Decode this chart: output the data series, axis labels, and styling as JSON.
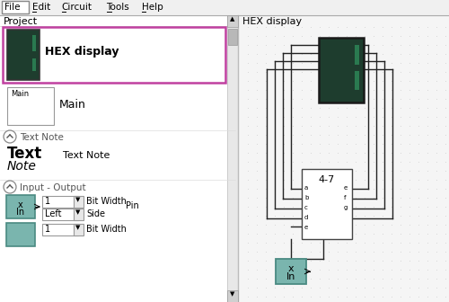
{
  "bg_color": "#f0f0f0",
  "menu_items": [
    "File",
    "Edit",
    "Circuit",
    "Tools",
    "Help"
  ],
  "panel_title": "Project",
  "right_title": "HEX display",
  "hex_display_label": "HEX display",
  "main_label": "Main",
  "text_note_label": "Text Note",
  "input_output_label": "Input - Output",
  "bit_width_label": "Bit Width",
  "side_label": "Side",
  "pin_label": "Pin",
  "chip_label": "4-7",
  "chip_pins_left": [
    "a",
    "b",
    "c",
    "d",
    "e"
  ],
  "chip_pins_right": [
    "e",
    "f",
    "g"
  ],
  "seven_seg_bg": "#1e3d2e",
  "seg_dark": "#1e3d2e",
  "seg_bright": "#2a7a50",
  "input_box_color": "#7ab5ae",
  "input_box_border": "#4a8a82",
  "scrollbar_bg": "#e0e0e0",
  "scrollbar_border": "#aaaaaa",
  "selection_border": "#c040a0",
  "wire_color": "#222222",
  "panel_divider": "#cccccc",
  "dot_color": "#c8c8c8",
  "dropdown_bg": "#e8e8e8",
  "dropdown_border": "#999999",
  "menu_bar_bg": "#f0f0f0",
  "file_btn_bg": "#ffffff",
  "panel_bg": "#ffffff",
  "chip_bg": "#ffffff",
  "chip_border": "#444444"
}
